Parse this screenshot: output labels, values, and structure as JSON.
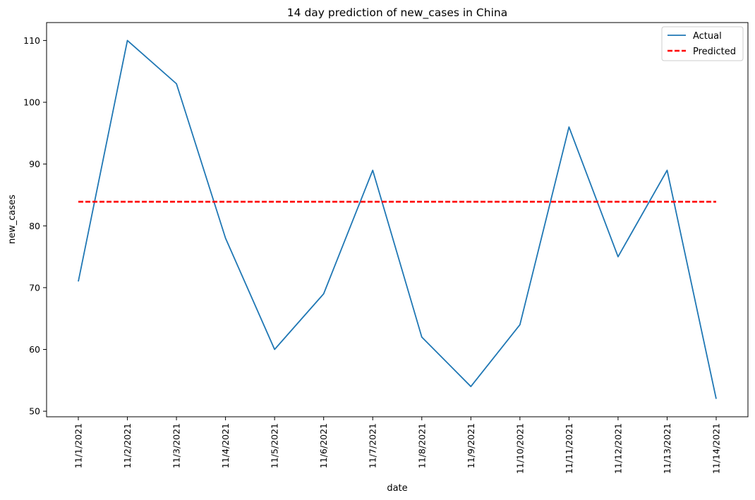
{
  "chart_data": {
    "type": "line",
    "title": "14 day prediction of new_cases in China",
    "xlabel": "date",
    "ylabel": "new_cases",
    "categories": [
      "11/1/2021",
      "11/2/2021",
      "11/3/2021",
      "11/4/2021",
      "11/5/2021",
      "11/6/2021",
      "11/7/2021",
      "11/8/2021",
      "11/9/2021",
      "11/10/2021",
      "11/11/2021",
      "11/12/2021",
      "11/13/2021",
      "11/14/2021"
    ],
    "series": [
      {
        "name": "Actual",
        "color": "#1f77b4",
        "style": "solid",
        "values": [
          71,
          110,
          103,
          78,
          60,
          69,
          89,
          62,
          54,
          64,
          96,
          75,
          89,
          52
        ]
      },
      {
        "name": "Predicted",
        "color": "#ff0000",
        "style": "dashed",
        "values": [
          83.9,
          83.9,
          83.9,
          83.9,
          83.9,
          83.9,
          83.9,
          83.9,
          83.9,
          83.9,
          83.9,
          83.9,
          83.9,
          83.9
        ]
      }
    ],
    "ylim": [
      49.1,
      112.9
    ],
    "yticks": [
      50,
      60,
      70,
      80,
      90,
      100,
      110
    ],
    "legend": "top-right",
    "grid": false
  }
}
